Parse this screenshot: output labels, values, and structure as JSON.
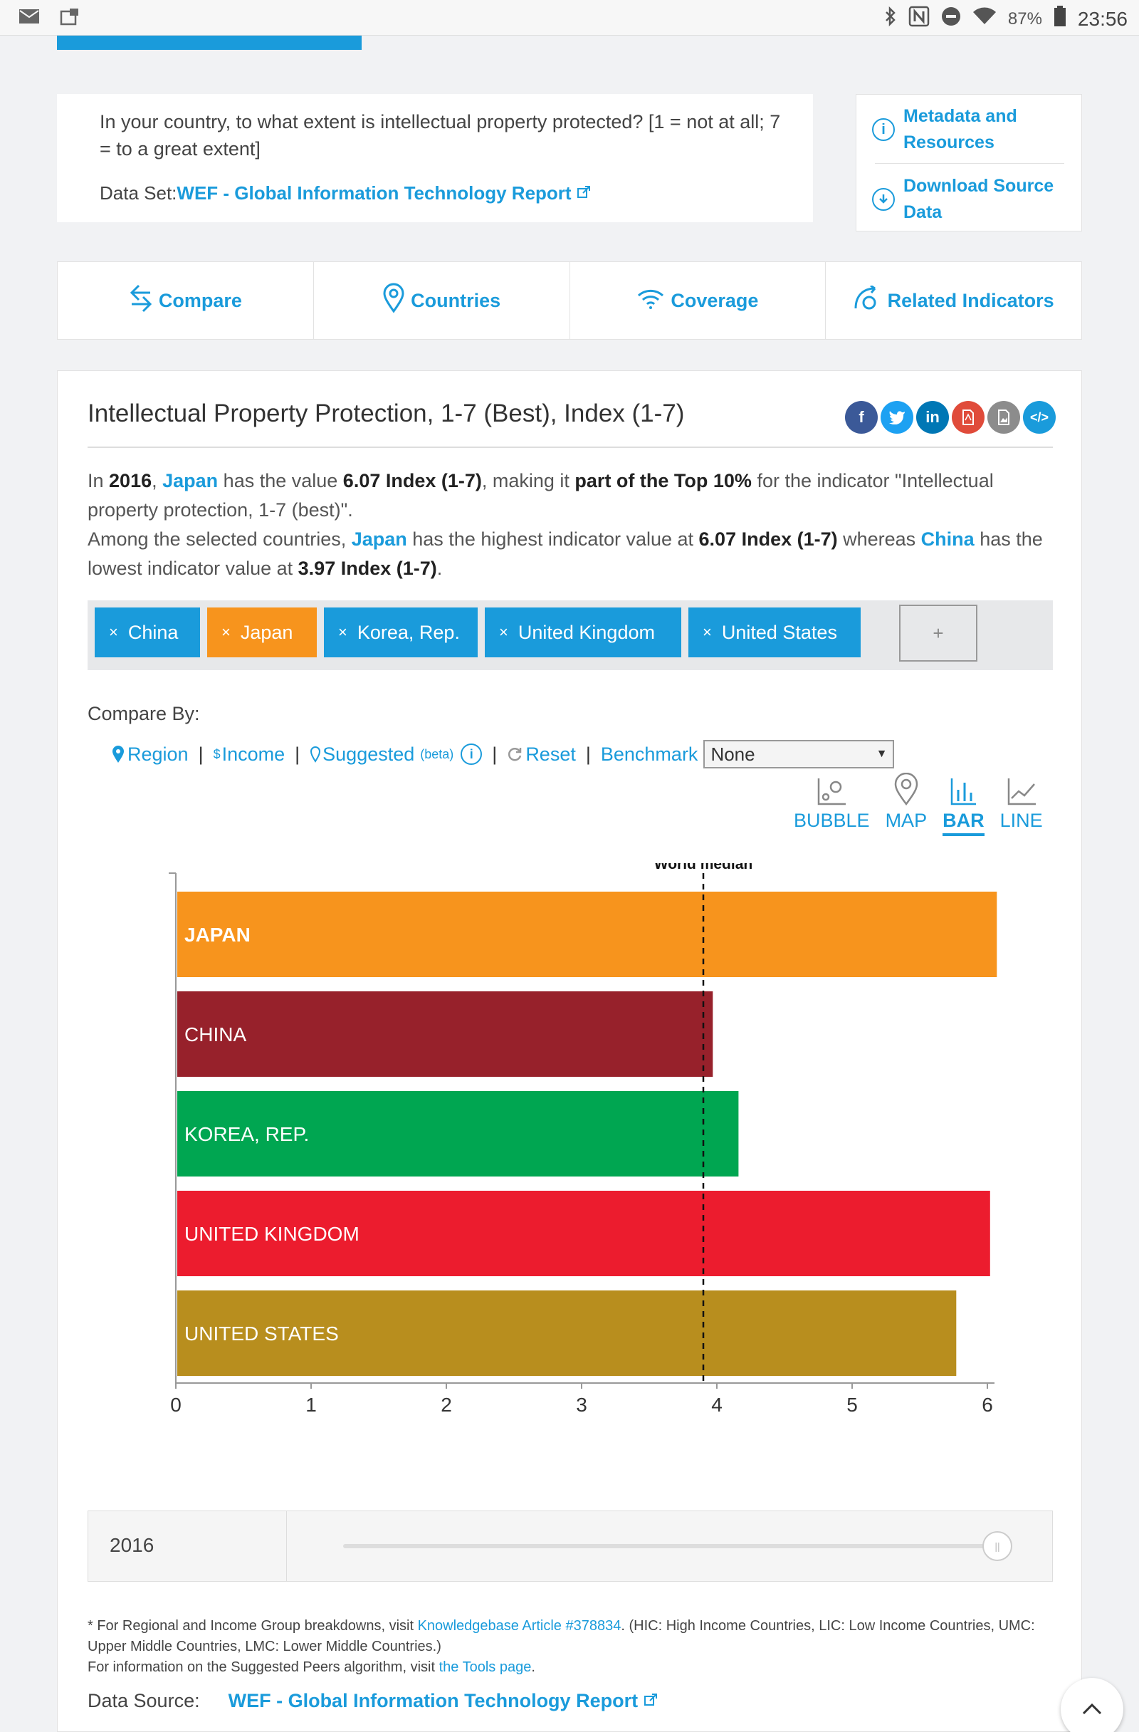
{
  "statusbar": {
    "battery": "87%",
    "time": "23:56"
  },
  "question": {
    "text": "In your country, to what extent is intellectual property protected? [1 = not at all; 7 = to a great extent]",
    "dataset_label": "Data Set:",
    "dataset_link": "WEF - Global Information Technology Report"
  },
  "meta": {
    "metadata_label": "Metadata and Resources",
    "download_label": "Download Source Data"
  },
  "tabs": [
    {
      "label": "Compare",
      "icon": "compare-icon"
    },
    {
      "label": "Countries",
      "icon": "location-pin-icon"
    },
    {
      "label": "Coverage",
      "icon": "wifi-icon"
    },
    {
      "label": "Related Indicators",
      "icon": "related-icon"
    }
  ],
  "main": {
    "title": "Intellectual Property Protection, 1-7 (Best), Index (1-7)",
    "share_icons": [
      "facebook-icon",
      "twitter-icon",
      "linkedin-icon",
      "pdf-icon",
      "image-icon",
      "embed-icon"
    ],
    "summary": {
      "p1_a": "In ",
      "year": "2016",
      "p1_b": ", ",
      "country": "Japan",
      "p1_c": " has the value ",
      "value": "6.07 Index (1-7)",
      "p1_d": ", making it ",
      "top": "part of the Top 10%",
      "p1_e": " for the indicator \"Intellectual property protection, 1-7 (best)\".",
      "p2_a": "Among the selected countries, ",
      "high_country": "Japan",
      "p2_b": " has the highest indicator value at ",
      "high_value": "6.07 Index (1-7)",
      "p2_c": " whereas ",
      "low_country": "China",
      "p2_d": " has the lowest indicator value at ",
      "low_value": "3.97 Index (1-7)",
      "p2_e": "."
    },
    "chips": [
      {
        "label": "China",
        "color": "#1a9bdb"
      },
      {
        "label": "Japan",
        "color": "#f7941d"
      },
      {
        "label": "Korea, Rep.",
        "color": "#1a9bdb"
      },
      {
        "label": "United Kingdom",
        "color": "#1a9bdb"
      },
      {
        "label": "United States",
        "color": "#1a9bdb"
      }
    ],
    "chip_add": "+",
    "compare_by": "Compare By:",
    "compare_options": {
      "region": "Region",
      "income": "Income",
      "suggested": "Suggested",
      "beta": "(beta)",
      "reset": "Reset",
      "benchmark": "Benchmark",
      "benchmark_value": "None"
    },
    "views": [
      {
        "label": "BUBBLE",
        "icon": "bubble-chart-icon",
        "active": false
      },
      {
        "label": "MAP",
        "icon": "map-pin-icon",
        "active": false
      },
      {
        "label": "BAR",
        "icon": "bar-chart-icon",
        "active": true
      },
      {
        "label": "LINE",
        "icon": "line-chart-icon",
        "active": false
      }
    ],
    "year": "2016",
    "footnote": {
      "l1_a": "* For Regional and Income Group breakdowns, visit ",
      "l1_link": "Knowledgebase Article #378834",
      "l1_b": ". (HIC: High Income Countries, LIC: Low Income Countries, UMC: Upper Middle Countries, LMC: Lower Middle Countries.)",
      "l2_a": "For information on the Suggested Peers algorithm, visit ",
      "l2_link": "the Tools page",
      "l2_b": "."
    },
    "datasource_label": "Data Source:",
    "datasource_link": "WEF - Global Information Technology Report"
  },
  "chart_data": {
    "type": "bar",
    "orientation": "horizontal",
    "categories": [
      "JAPAN",
      "CHINA",
      "KOREA, REP.",
      "UNITED KINGDOM",
      "UNITED STATES"
    ],
    "values": [
      6.07,
      3.97,
      4.16,
      6.02,
      5.77
    ],
    "colors": [
      "#f7941d",
      "#97212b",
      "#00a651",
      "#ec1c2e",
      "#b88e1e"
    ],
    "xlim": [
      0,
      6
    ],
    "xticks": [
      "0",
      "1",
      "2",
      "3",
      "4",
      "5",
      "6"
    ],
    "reference_line": {
      "label": "World median",
      "value": 3.9
    }
  }
}
